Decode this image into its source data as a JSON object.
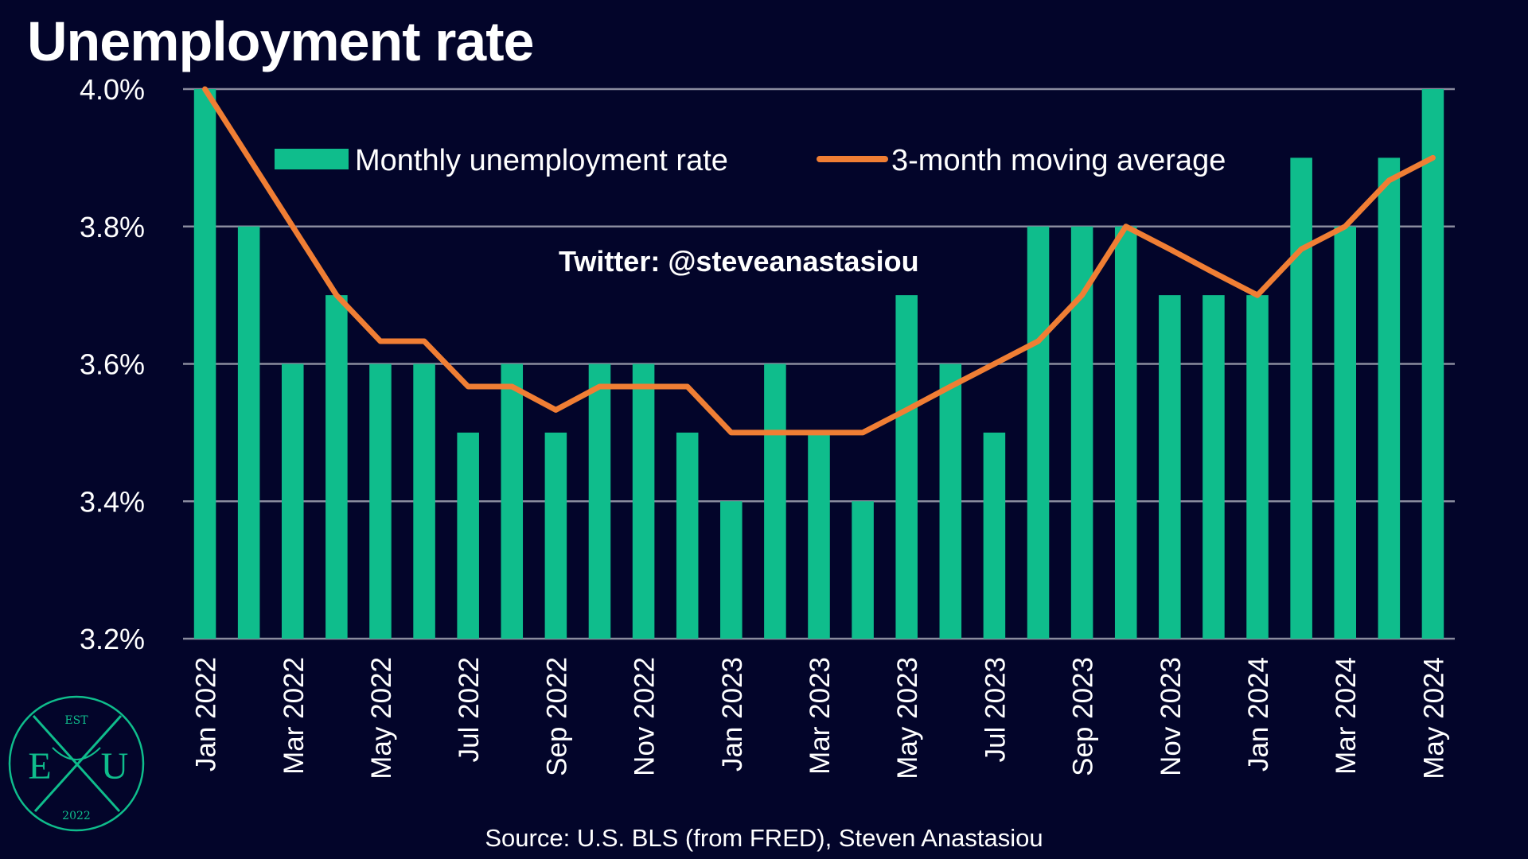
{
  "title": "Unemployment rate",
  "source": "Source: U.S. BLS (from FRED), Steven Anastasiou",
  "watermark": "Twitter: @steveanastasiou",
  "logo": {
    "top": "EST",
    "left": "E",
    "right": "U",
    "bottom": "2022"
  },
  "colors": {
    "background": "#03052a",
    "bar": "#0fbd8c",
    "line": "#f07e34",
    "grid": "#8a8c9e"
  },
  "chart_data": {
    "type": "bar",
    "ylim": [
      3.2,
      4.0
    ],
    "yticks": [
      "3.2%",
      "3.4%",
      "3.6%",
      "3.8%",
      "4.0%"
    ],
    "ytick_values": [
      3.2,
      3.4,
      3.6,
      3.8,
      4.0
    ],
    "legend_position": "top",
    "grid": true,
    "categories": [
      "Jan 2022",
      "Feb 2022",
      "Mar 2022",
      "Apr 2022",
      "May 2022",
      "Jun 2022",
      "Jul 2022",
      "Aug 2022",
      "Sep 2022",
      "Oct 2022",
      "Nov 2022",
      "Dec 2022",
      "Jan 2023",
      "Feb 2023",
      "Mar 2023",
      "Apr 2023",
      "May 2023",
      "Jun 2023",
      "Jul 2023",
      "Aug 2023",
      "Sep 2023",
      "Oct 2023",
      "Nov 2023",
      "Dec 2023",
      "Jan 2024",
      "Feb 2024",
      "Mar 2024",
      "Apr 2024",
      "May 2024"
    ],
    "xtick_labels": [
      "Jan 2022",
      "Mar 2022",
      "May 2022",
      "Jul 2022",
      "Sep 2022",
      "Nov 2022",
      "Jan 2023",
      "Mar 2023",
      "May 2023",
      "Jul 2023",
      "Sep 2023",
      "Nov 2023",
      "Jan 2024",
      "Mar 2024",
      "May 2024"
    ],
    "series": [
      {
        "name": "Monthly unemployment rate",
        "type": "bar",
        "values": [
          4.0,
          3.8,
          3.6,
          3.7,
          3.6,
          3.6,
          3.5,
          3.6,
          3.5,
          3.6,
          3.6,
          3.5,
          3.4,
          3.6,
          3.5,
          3.4,
          3.7,
          3.6,
          3.5,
          3.8,
          3.8,
          3.8,
          3.7,
          3.7,
          3.7,
          3.9,
          3.8,
          3.9,
          4.0
        ]
      },
      {
        "name": "3-month moving average",
        "type": "line",
        "values": [
          4.0,
          3.9,
          3.8,
          3.7,
          3.633,
          3.633,
          3.567,
          3.567,
          3.533,
          3.567,
          3.567,
          3.567,
          3.5,
          3.5,
          3.5,
          3.5,
          3.533,
          3.567,
          3.6,
          3.633,
          3.7,
          3.8,
          3.767,
          3.733,
          3.7,
          3.767,
          3.8,
          3.867,
          3.9
        ]
      }
    ]
  }
}
